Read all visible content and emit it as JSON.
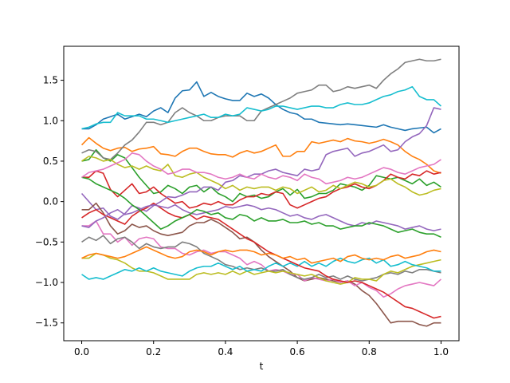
{
  "chart_data": {
    "type": "line",
    "title": "",
    "xlabel": "t",
    "ylabel": "",
    "xlim": [
      -0.05,
      1.05
    ],
    "ylim": [
      -1.72,
      1.92
    ],
    "xticks": [
      0.0,
      0.2,
      0.4,
      0.6,
      0.8,
      1.0
    ],
    "xtick_labels": [
      "0.0",
      "0.2",
      "0.4",
      "0.6",
      "0.8",
      "1.0"
    ],
    "yticks": [
      -1.5,
      -1.0,
      -0.5,
      0.0,
      0.5,
      1.0,
      1.5
    ],
    "ytick_labels": [
      "−1.5",
      "−1.0",
      "−0.5",
      "0.0",
      "0.5",
      "1.0",
      "1.5"
    ],
    "grid": false,
    "x": [
      0.0,
      0.02,
      0.04,
      0.06,
      0.08,
      0.1,
      0.12,
      0.14,
      0.16,
      0.18,
      0.2,
      0.22,
      0.24,
      0.26,
      0.28,
      0.3,
      0.32,
      0.34,
      0.36,
      0.38,
      0.4,
      0.42,
      0.44,
      0.46,
      0.48,
      0.5,
      0.52,
      0.54,
      0.56,
      0.58,
      0.6,
      0.62,
      0.64,
      0.66,
      0.68,
      0.7,
      0.72,
      0.74,
      0.76,
      0.78,
      0.8,
      0.82,
      0.84,
      0.86,
      0.88,
      0.9,
      0.92,
      0.94,
      0.96,
      0.98,
      1.0
    ],
    "series": [
      {
        "color": "#1f77b4",
        "values": [
          0.9,
          0.9,
          0.95,
          1.02,
          1.05,
          1.08,
          1.02,
          1.05,
          1.08,
          1.05,
          1.12,
          1.16,
          1.1,
          1.28,
          1.37,
          1.38,
          1.48,
          1.3,
          1.35,
          1.3,
          1.27,
          1.25,
          1.25,
          1.34,
          1.3,
          1.33,
          1.28,
          1.2,
          1.14,
          1.1,
          1.08,
          1.02,
          1.02,
          0.98,
          0.97,
          0.96,
          0.95,
          0.96,
          0.95,
          0.94,
          0.93,
          0.92,
          0.95,
          0.92,
          0.9,
          0.88,
          0.9,
          0.91,
          0.92,
          0.85,
          0.9
        ]
      },
      {
        "color": "#ff7f0e",
        "values": [
          0.7,
          0.79,
          0.72,
          0.66,
          0.63,
          0.66,
          0.67,
          0.62,
          0.65,
          0.66,
          0.68,
          0.59,
          0.58,
          0.56,
          0.62,
          0.66,
          0.66,
          0.62,
          0.59,
          0.58,
          0.58,
          0.55,
          0.6,
          0.63,
          0.6,
          0.62,
          0.66,
          0.7,
          0.56,
          0.56,
          0.62,
          0.62,
          0.74,
          0.72,
          0.74,
          0.76,
          0.74,
          0.78,
          0.75,
          0.74,
          0.72,
          0.74,
          0.77,
          0.74,
          0.7,
          0.62,
          0.56,
          0.52,
          0.46,
          0.38,
          0.35
        ]
      },
      {
        "color": "#2ca02c",
        "values": [
          0.5,
          0.52,
          0.64,
          0.54,
          0.5,
          0.58,
          0.54,
          0.42,
          0.3,
          0.2,
          0.1,
          0.12,
          0.2,
          0.16,
          0.1,
          0.18,
          0.2,
          0.12,
          0.18,
          0.1,
          0.06,
          0.0,
          0.1,
          0.06,
          0.08,
          0.04,
          0.06,
          0.12,
          0.16,
          0.08,
          0.15,
          0.04,
          0.06,
          0.1,
          0.1,
          0.14,
          0.22,
          0.2,
          0.18,
          0.14,
          0.2,
          0.32,
          0.3,
          0.28,
          0.3,
          0.26,
          0.22,
          0.28,
          0.2,
          0.24,
          0.18
        ]
      },
      {
        "color": "#d62728",
        "values": [
          0.3,
          0.3,
          0.38,
          0.35,
          0.15,
          0.06,
          0.14,
          0.22,
          0.1,
          0.12,
          0.18,
          0.1,
          0.04,
          -0.02,
          0.0,
          -0.08,
          -0.06,
          -0.02,
          -0.04,
          0.0,
          -0.04,
          -0.04,
          0.02,
          0.06,
          0.06,
          0.1,
          0.08,
          0.12,
          0.1,
          -0.04,
          -0.08,
          -0.04,
          0.0,
          0.04,
          0.06,
          0.12,
          0.16,
          0.18,
          0.22,
          0.18,
          0.16,
          0.2,
          0.26,
          0.34,
          0.3,
          0.28,
          0.34,
          0.32,
          0.38,
          0.34,
          0.36
        ]
      },
      {
        "color": "#9467bd",
        "values": [
          0.1,
          0.0,
          -0.1,
          -0.08,
          -0.18,
          -0.22,
          -0.15,
          -0.05,
          -0.08,
          -0.12,
          -0.05,
          0.0,
          0.06,
          0.05,
          0.08,
          0.12,
          0.12,
          0.18,
          0.18,
          0.14,
          0.24,
          0.26,
          0.32,
          0.3,
          0.34,
          0.34,
          0.38,
          0.4,
          0.36,
          0.34,
          0.32,
          0.4,
          0.38,
          0.4,
          0.58,
          0.62,
          0.64,
          0.66,
          0.56,
          0.6,
          0.62,
          0.66,
          0.7,
          0.62,
          0.64,
          0.74,
          0.8,
          0.84,
          0.94,
          1.16,
          1.14
        ]
      },
      {
        "color": "#8c564b",
        "values": [
          -0.1,
          -0.1,
          -0.02,
          -0.14,
          -0.3,
          -0.4,
          -0.36,
          -0.28,
          -0.32,
          -0.3,
          -0.36,
          -0.4,
          -0.42,
          -0.4,
          -0.38,
          -0.3,
          -0.26,
          -0.26,
          -0.22,
          -0.26,
          -0.32,
          -0.38,
          -0.46,
          -0.44,
          -0.5,
          -0.6,
          -0.68,
          -0.74,
          -0.8,
          -0.86,
          -0.94,
          -0.98,
          -0.96,
          -0.94,
          -0.96,
          -0.98,
          -1.0,
          -0.98,
          -1.02,
          -1.1,
          -1.16,
          -1.26,
          -1.38,
          -1.5,
          -1.48,
          -1.48,
          -1.48,
          -1.52,
          -1.54,
          -1.5,
          -1.5
        ]
      },
      {
        "color": "#e377c2",
        "values": [
          -0.3,
          -0.3,
          -0.24,
          -0.4,
          -0.4,
          -0.5,
          -0.44,
          -0.54,
          -0.46,
          -0.44,
          -0.46,
          -0.56,
          -0.58,
          -0.58,
          -0.64,
          -0.66,
          -0.62,
          -0.6,
          -0.64,
          -0.62,
          -0.62,
          -0.66,
          -0.7,
          -0.78,
          -0.74,
          -0.78,
          -0.86,
          -0.84,
          -0.86,
          -0.9,
          -0.9,
          -0.98,
          -0.94,
          -0.96,
          -0.98,
          -0.96,
          -1.0,
          -0.98,
          -1.04,
          -1.0,
          -1.06,
          -1.1,
          -1.18,
          -1.14,
          -1.08,
          -1.04,
          -1.02,
          -1.0,
          -1.02,
          -1.04,
          -0.96
        ]
      },
      {
        "color": "#7f7f7f",
        "values": [
          -0.5,
          -0.44,
          -0.48,
          -0.42,
          -0.52,
          -0.46,
          -0.44,
          -0.5,
          -0.58,
          -0.52,
          -0.56,
          -0.58,
          -0.56,
          -0.56,
          -0.5,
          -0.52,
          -0.56,
          -0.64,
          -0.68,
          -0.72,
          -0.78,
          -0.8,
          -0.84,
          -0.82,
          -0.84,
          -0.82,
          -0.86,
          -0.86,
          -0.84,
          -0.9,
          -0.94,
          -0.96,
          -0.94,
          -0.9,
          -0.94,
          -0.92,
          -0.96,
          -0.92,
          -0.96,
          -0.98,
          -0.96,
          -0.94,
          -0.9,
          -0.88,
          -0.9,
          -0.86,
          -0.88,
          -0.84,
          -0.84,
          -0.86,
          -0.88
        ]
      },
      {
        "color": "#bcbd22",
        "values": [
          -0.7,
          -0.7,
          -0.64,
          -0.66,
          -0.7,
          -0.72,
          -0.76,
          -0.82,
          -0.86,
          -0.86,
          -0.88,
          -0.92,
          -0.96,
          -0.96,
          -0.96,
          -0.96,
          -0.9,
          -0.88,
          -0.9,
          -0.88,
          -0.9,
          -0.86,
          -0.9,
          -0.86,
          -0.9,
          -0.88,
          -0.86,
          -0.88,
          -0.86,
          -0.88,
          -0.9,
          -0.92,
          -0.9,
          -0.94,
          -0.98,
          -1.0,
          -1.02,
          -1.0,
          -0.94,
          -0.96,
          -0.96,
          -0.98,
          -0.9,
          -0.86,
          -0.88,
          -0.84,
          -0.8,
          -0.78,
          -0.76,
          -0.74,
          -0.72
        ]
      },
      {
        "color": "#17becf",
        "values": [
          -0.9,
          -0.96,
          -0.94,
          -0.96,
          -0.92,
          -0.88,
          -0.84,
          -0.86,
          -0.82,
          -0.86,
          -0.82,
          -0.86,
          -0.88,
          -0.9,
          -0.92,
          -0.86,
          -0.82,
          -0.8,
          -0.8,
          -0.76,
          -0.8,
          -0.84,
          -0.8,
          -0.86,
          -0.84,
          -0.86,
          -0.8,
          -0.76,
          -0.8,
          -0.76,
          -0.8,
          -0.74,
          -0.8,
          -0.76,
          -0.8,
          -0.74,
          -0.7,
          -0.74,
          -0.76,
          -0.72,
          -0.7,
          -0.76,
          -0.72,
          -0.8,
          -0.78,
          -0.74,
          -0.78,
          -0.8,
          -0.82,
          -0.86,
          -0.86
        ]
      }
    ],
    "extra_series": [
      {
        "color": "#7f7f7f",
        "values": [
          0.6,
          0.64,
          0.62,
          0.54,
          0.52,
          0.6,
          0.7,
          0.76,
          0.86,
          0.98,
          0.98,
          0.95,
          0.98,
          1.1,
          1.16,
          1.1,
          1.06,
          1.0,
          1.0,
          1.04,
          1.06,
          1.06,
          1.06,
          1.0,
          1.0,
          1.12,
          1.16,
          1.2,
          1.24,
          1.28,
          1.34,
          1.36,
          1.38,
          1.44,
          1.44,
          1.36,
          1.38,
          1.42,
          1.4,
          1.42,
          1.44,
          1.4,
          1.5,
          1.58,
          1.64,
          1.72,
          1.74,
          1.76,
          1.74,
          1.74,
          1.76
        ]
      },
      {
        "color": "#17becf",
        "values": [
          0.9,
          0.92,
          0.96,
          0.98,
          0.98,
          1.1,
          1.06,
          1.06,
          1.06,
          1.02,
          1.02,
          1.0,
          0.98,
          1.0,
          1.02,
          1.04,
          1.06,
          1.08,
          1.04,
          1.04,
          1.08,
          1.06,
          1.08,
          1.16,
          1.14,
          1.12,
          1.14,
          1.18,
          1.18,
          1.16,
          1.14,
          1.16,
          1.18,
          1.18,
          1.16,
          1.16,
          1.2,
          1.22,
          1.2,
          1.2,
          1.22,
          1.26,
          1.3,
          1.32,
          1.36,
          1.38,
          1.42,
          1.3,
          1.26,
          1.26,
          1.18
        ]
      },
      {
        "color": "#d62728",
        "values": [
          -0.2,
          -0.14,
          -0.1,
          -0.16,
          -0.2,
          -0.24,
          -0.28,
          -0.18,
          -0.12,
          -0.08,
          -0.02,
          -0.08,
          -0.14,
          -0.18,
          -0.2,
          -0.16,
          -0.22,
          -0.18,
          -0.2,
          -0.22,
          -0.28,
          -0.34,
          -0.4,
          -0.46,
          -0.5,
          -0.56,
          -0.62,
          -0.66,
          -0.7,
          -0.74,
          -0.78,
          -0.82,
          -0.84,
          -0.86,
          -0.92,
          -0.96,
          -0.98,
          -1.0,
          -0.98,
          -1.0,
          -1.04,
          -1.08,
          -1.12,
          -1.18,
          -1.24,
          -1.3,
          -1.32,
          -1.36,
          -1.4,
          -1.44,
          -1.42
        ]
      },
      {
        "color": "#9467bd",
        "values": [
          -0.3,
          -0.32,
          -0.24,
          -0.2,
          -0.14,
          -0.1,
          -0.16,
          -0.14,
          -0.1,
          -0.06,
          -0.04,
          -0.06,
          -0.08,
          -0.04,
          -0.1,
          -0.14,
          -0.16,
          -0.14,
          -0.12,
          -0.1,
          -0.06,
          -0.08,
          -0.06,
          -0.04,
          -0.06,
          -0.1,
          -0.08,
          -0.1,
          -0.14,
          -0.18,
          -0.16,
          -0.2,
          -0.22,
          -0.18,
          -0.16,
          -0.2,
          -0.24,
          -0.28,
          -0.3,
          -0.26,
          -0.28,
          -0.24,
          -0.26,
          -0.28,
          -0.3,
          -0.34,
          -0.32,
          -0.3,
          -0.34,
          -0.36,
          -0.34
        ]
      },
      {
        "color": "#2ca02c",
        "values": [
          0.3,
          0.28,
          0.22,
          0.18,
          0.14,
          0.1,
          0.04,
          -0.04,
          -0.1,
          -0.18,
          -0.26,
          -0.34,
          -0.3,
          -0.24,
          -0.2,
          -0.16,
          -0.1,
          -0.12,
          -0.16,
          -0.14,
          -0.2,
          -0.22,
          -0.16,
          -0.18,
          -0.24,
          -0.2,
          -0.24,
          -0.24,
          -0.22,
          -0.26,
          -0.26,
          -0.24,
          -0.28,
          -0.26,
          -0.3,
          -0.3,
          -0.34,
          -0.32,
          -0.3,
          -0.3,
          -0.26,
          -0.28,
          -0.3,
          -0.34,
          -0.38,
          -0.36,
          -0.34,
          -0.38,
          -0.4,
          -0.4,
          -0.44
        ]
      },
      {
        "color": "#ff7f0e",
        "values": [
          -0.7,
          -0.66,
          -0.64,
          -0.66,
          -0.68,
          -0.7,
          -0.68,
          -0.64,
          -0.6,
          -0.56,
          -0.6,
          -0.64,
          -0.68,
          -0.7,
          -0.68,
          -0.62,
          -0.6,
          -0.62,
          -0.66,
          -0.62,
          -0.6,
          -0.62,
          -0.6,
          -0.6,
          -0.62,
          -0.66,
          -0.64,
          -0.66,
          -0.7,
          -0.68,
          -0.72,
          -0.7,
          -0.76,
          -0.74,
          -0.72,
          -0.7,
          -0.74,
          -0.68,
          -0.66,
          -0.7,
          -0.72,
          -0.7,
          -0.72,
          -0.68,
          -0.66,
          -0.7,
          -0.68,
          -0.66,
          -0.62,
          -0.6,
          -0.62
        ]
      },
      {
        "color": "#bcbd22",
        "values": [
          0.5,
          0.56,
          0.54,
          0.5,
          0.52,
          0.46,
          0.42,
          0.44,
          0.4,
          0.44,
          0.4,
          0.38,
          0.46,
          0.32,
          0.3,
          0.34,
          0.36,
          0.3,
          0.26,
          0.22,
          0.16,
          0.2,
          0.14,
          0.18,
          0.16,
          0.18,
          0.18,
          0.14,
          0.18,
          0.16,
          0.1,
          0.14,
          0.18,
          0.12,
          0.14,
          0.2,
          0.16,
          0.2,
          0.24,
          0.22,
          0.18,
          0.2,
          0.26,
          0.28,
          0.22,
          0.18,
          0.12,
          0.08,
          0.1,
          0.14,
          0.16
        ]
      },
      {
        "color": "#e377c2",
        "values": [
          0.3,
          0.36,
          0.38,
          0.4,
          0.44,
          0.48,
          0.52,
          0.6,
          0.58,
          0.5,
          0.44,
          0.4,
          0.34,
          0.36,
          0.4,
          0.4,
          0.36,
          0.36,
          0.34,
          0.3,
          0.28,
          0.3,
          0.34,
          0.3,
          0.28,
          0.34,
          0.3,
          0.28,
          0.32,
          0.3,
          0.26,
          0.34,
          0.3,
          0.28,
          0.22,
          0.24,
          0.26,
          0.3,
          0.28,
          0.3,
          0.34,
          0.38,
          0.42,
          0.4,
          0.36,
          0.34,
          0.38,
          0.42,
          0.44,
          0.46,
          0.52
        ]
      }
    ]
  }
}
